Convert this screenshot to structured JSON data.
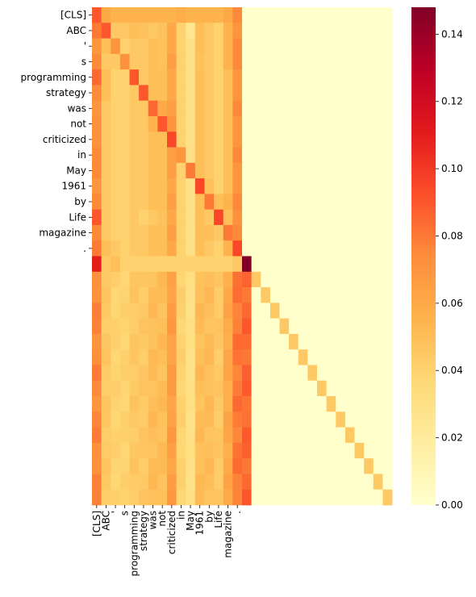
{
  "chart_data": {
    "type": "heatmap",
    "title": "",
    "xlabel": "",
    "ylabel": "",
    "x_tick_labels": [
      "[CLS]",
      "ABC",
      "'",
      "s",
      "programming",
      "strategy",
      "was",
      "not",
      "criticized",
      "in",
      "May",
      "1961",
      "by",
      "Life",
      "magazine",
      "."
    ],
    "y_tick_labels": [
      "[CLS]",
      "ABC",
      "'",
      "s",
      "programming",
      "strategy",
      "was",
      "not",
      "criticized",
      "in",
      "May",
      "1961",
      "by",
      "Life",
      "magazine",
      "."
    ],
    "n_rows": 32,
    "n_cols": 32,
    "colormap": [
      "#ffffcc",
      "#ffeda0",
      "#fed976",
      "#feb24c",
      "#fd8d3c",
      "#fc4e2a",
      "#e31a1c",
      "#bd0026",
      "#800026"
    ],
    "colorbar": {
      "min": 0.0,
      "max": 0.148,
      "ticks": [
        0.0,
        0.02,
        0.04,
        0.06,
        0.08,
        0.1,
        0.12,
        0.14
      ],
      "tick_labels": [
        "0.00",
        "0.02",
        "0.04",
        "0.06",
        "0.08",
        "0.10",
        "0.12",
        "0.14"
      ]
    },
    "top_block_values": [
      [
        0.09,
        0.06,
        0.055,
        0.055,
        0.055,
        0.055,
        0.055,
        0.055,
        0.055,
        0.058,
        0.055,
        0.055,
        0.055,
        0.055,
        0.06,
        0.075
      ],
      [
        0.08,
        0.09,
        0.045,
        0.045,
        0.05,
        0.048,
        0.045,
        0.048,
        0.06,
        0.04,
        0.025,
        0.05,
        0.045,
        0.04,
        0.055,
        0.07
      ],
      [
        0.07,
        0.05,
        0.07,
        0.04,
        0.045,
        0.045,
        0.05,
        0.048,
        0.06,
        0.04,
        0.03,
        0.05,
        0.045,
        0.04,
        0.055,
        0.075
      ],
      [
        0.075,
        0.045,
        0.045,
        0.072,
        0.045,
        0.045,
        0.05,
        0.048,
        0.065,
        0.04,
        0.03,
        0.048,
        0.045,
        0.04,
        0.055,
        0.075
      ],
      [
        0.085,
        0.05,
        0.04,
        0.04,
        0.09,
        0.045,
        0.05,
        0.05,
        0.06,
        0.04,
        0.03,
        0.05,
        0.045,
        0.04,
        0.05,
        0.07
      ],
      [
        0.075,
        0.05,
        0.04,
        0.04,
        0.045,
        0.09,
        0.05,
        0.05,
        0.06,
        0.04,
        0.03,
        0.05,
        0.045,
        0.04,
        0.05,
        0.07
      ],
      [
        0.07,
        0.045,
        0.04,
        0.04,
        0.045,
        0.045,
        0.085,
        0.06,
        0.065,
        0.04,
        0.03,
        0.05,
        0.045,
        0.04,
        0.05,
        0.075
      ],
      [
        0.072,
        0.045,
        0.04,
        0.04,
        0.045,
        0.045,
        0.055,
        0.09,
        0.07,
        0.04,
        0.03,
        0.05,
        0.045,
        0.04,
        0.05,
        0.07
      ],
      [
        0.072,
        0.045,
        0.04,
        0.04,
        0.045,
        0.045,
        0.05,
        0.05,
        0.095,
        0.04,
        0.03,
        0.05,
        0.045,
        0.04,
        0.05,
        0.07
      ],
      [
        0.075,
        0.045,
        0.04,
        0.04,
        0.045,
        0.045,
        0.05,
        0.05,
        0.065,
        0.07,
        0.03,
        0.05,
        0.045,
        0.04,
        0.05,
        0.075
      ],
      [
        0.075,
        0.045,
        0.04,
        0.04,
        0.045,
        0.045,
        0.05,
        0.05,
        0.065,
        0.04,
        0.08,
        0.05,
        0.045,
        0.04,
        0.05,
        0.07
      ],
      [
        0.07,
        0.045,
        0.04,
        0.04,
        0.045,
        0.045,
        0.05,
        0.05,
        0.06,
        0.04,
        0.03,
        0.095,
        0.048,
        0.04,
        0.05,
        0.07
      ],
      [
        0.075,
        0.045,
        0.04,
        0.04,
        0.045,
        0.045,
        0.05,
        0.05,
        0.065,
        0.04,
        0.03,
        0.05,
        0.08,
        0.05,
        0.055,
        0.075
      ],
      [
        0.09,
        0.045,
        0.04,
        0.04,
        0.045,
        0.04,
        0.045,
        0.048,
        0.06,
        0.04,
        0.03,
        0.05,
        0.045,
        0.095,
        0.05,
        0.072
      ],
      [
        0.075,
        0.045,
        0.04,
        0.04,
        0.045,
        0.045,
        0.05,
        0.05,
        0.065,
        0.04,
        0.03,
        0.05,
        0.05,
        0.045,
        0.08,
        0.075
      ],
      [
        0.08,
        0.05,
        0.045,
        0.04,
        0.045,
        0.045,
        0.05,
        0.05,
        0.06,
        0.04,
        0.03,
        0.05,
        0.045,
        0.04,
        0.055,
        0.095
      ]
    ],
    "row_16_values": [
      0.11,
      0.045,
      0.05,
      0.04,
      0.04,
      0.04,
      0.04,
      0.04,
      0.04,
      0.04,
      0.04,
      0.04,
      0.04,
      0.04,
      0.04,
      0.045,
      0.148
    ],
    "lower_block_column_profile": [
      0.075,
      0.045,
      0.04,
      0.04,
      0.045,
      0.045,
      0.05,
      0.05,
      0.065,
      0.04,
      0.03,
      0.05,
      0.05,
      0.045,
      0.06,
      0.08,
      0.085
    ],
    "lower_diagonal_value": 0.045,
    "background_value": 0.0
  }
}
